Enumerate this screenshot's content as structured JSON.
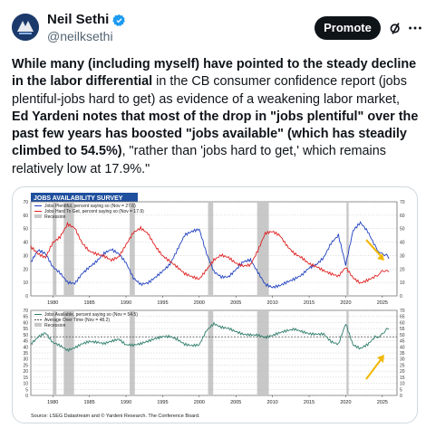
{
  "author": {
    "name": "Neil Sethi",
    "handle": "@neilksethi",
    "verified": true
  },
  "actions": {
    "promote_label": "Promote"
  },
  "tweet": {
    "segments": [
      {
        "bold": true,
        "text": "While many (including myself) have pointed to the steady decline in the labor differential"
      },
      {
        "bold": false,
        "text": " in the CB consumer confidence report (jobs plentiful-jobs hard to get) as evidence of a weakening labor market, "
      },
      {
        "bold": true,
        "text": "Ed Yardeni notes that most of the drop in \"jobs plentiful\" over the past few years has boosted \"jobs available\" (which has steadily climbed to 54.5%)"
      },
      {
        "bold": false,
        "text": ", \"rather than 'jobs hard to get,' which remains relatively low at 17.9%.\""
      }
    ]
  },
  "chart_data": [
    {
      "type": "line",
      "title": "JOBS AVAILABILITY SURVEY",
      "ylim": [
        0,
        70
      ],
      "yticks": [
        0,
        10,
        20,
        30,
        40,
        50,
        60,
        70
      ],
      "xticks": [
        "1980",
        "1985",
        "1990",
        "1995",
        "2000",
        "2005",
        "2010",
        "2015",
        "2020",
        "2025"
      ],
      "xrange": [
        1977,
        2027
      ],
      "grid": true,
      "legend_position": "top-left",
      "recessions": [
        [
          1980.0,
          1980.5
        ],
        [
          1981.5,
          1982.9
        ],
        [
          1990.5,
          1991.2
        ],
        [
          2001.2,
          2001.9
        ],
        [
          2007.9,
          2009.5
        ],
        [
          2020.1,
          2020.4
        ]
      ],
      "series": [
        {
          "name": "Jobs Plentiful, percent saying so (Nov = 27.6)",
          "color": "#1f3fbf",
          "x": [
            1977,
            1978,
            1979,
            1980,
            1981,
            1982,
            1983,
            1984,
            1985,
            1986,
            1987,
            1988,
            1989,
            1990,
            1991,
            1992,
            1993,
            1994,
            1995,
            1996,
            1997,
            1998,
            1999,
            2000,
            2001,
            2002,
            2003,
            2004,
            2005,
            2006,
            2007,
            2008,
            2009,
            2010,
            2011,
            2012,
            2013,
            2014,
            2015,
            2016,
            2017,
            2018,
            2019,
            2020,
            2021,
            2022,
            2023,
            2024,
            2025.9
          ],
          "values": [
            25,
            33,
            30,
            20,
            16,
            10,
            10,
            18,
            23,
            27,
            32,
            34,
            30,
            23,
            12,
            8,
            10,
            15,
            20,
            25,
            35,
            45,
            47,
            48,
            30,
            17,
            14,
            15,
            21,
            27,
            28,
            18,
            8,
            5,
            6,
            9,
            12,
            16,
            22,
            25,
            30,
            40,
            45,
            22,
            47,
            53,
            47,
            37,
            27.6
          ]
        },
        {
          "name": "Jobs Hard To Get, percent saying so (Nov = 17.9)",
          "color": "#e02020",
          "x": [
            1977,
            1978,
            1979,
            1980,
            1981,
            1982,
            1983,
            1984,
            1985,
            1986,
            1987,
            1988,
            1989,
            1990,
            1991,
            1992,
            1993,
            1994,
            1995,
            1996,
            1997,
            1998,
            1999,
            2000,
            2001,
            2002,
            2003,
            2004,
            2005,
            2006,
            2007,
            2008,
            2009,
            2010,
            2011,
            2012,
            2013,
            2014,
            2015,
            2016,
            2017,
            2018,
            2019,
            2020,
            2021,
            2022,
            2023,
            2024,
            2025.9
          ],
          "values": [
            35,
            30,
            28,
            40,
            45,
            55,
            52,
            40,
            33,
            30,
            28,
            25,
            28,
            38,
            48,
            52,
            48,
            38,
            30,
            25,
            20,
            15,
            13,
            12,
            20,
            28,
            32,
            30,
            25,
            22,
            22,
            32,
            45,
            47,
            45,
            38,
            33,
            30,
            25,
            22,
            18,
            15,
            13,
            20,
            13,
            10,
            13,
            16,
            17.9
          ]
        }
      ],
      "legend_extra": [
        "Recession"
      ]
    },
    {
      "type": "line",
      "ylim": [
        0,
        70
      ],
      "yticks": [
        0,
        5,
        10,
        15,
        20,
        25,
        30,
        35,
        40,
        45,
        50,
        55,
        60,
        65,
        70
      ],
      "xticks": [
        "1980",
        "1985",
        "1990",
        "1995",
        "2000",
        "2005",
        "2010",
        "2015",
        "2020",
        "2025"
      ],
      "xrange": [
        1977,
        2027
      ],
      "grid": true,
      "legend_position": "top-left",
      "recessions": [
        [
          1980.0,
          1980.5
        ],
        [
          1981.5,
          1982.9
        ],
        [
          1990.5,
          1991.2
        ],
        [
          2001.2,
          2001.9
        ],
        [
          2007.9,
          2009.5
        ],
        [
          2020.1,
          2020.4
        ]
      ],
      "average": 48.2,
      "series": [
        {
          "name": "Jobs Available, percent saying so (Nov = 54.5)",
          "color": "#2e7d6b",
          "x": [
            1977,
            1978,
            1979,
            1980,
            1981,
            1982,
            1983,
            1984,
            1985,
            1986,
            1987,
            1988,
            1989,
            1990,
            1991,
            1992,
            1993,
            1994,
            1995,
            1996,
            1997,
            1998,
            1999,
            2000,
            2001,
            2002,
            2003,
            2004,
            2005,
            2006,
            2007,
            2008,
            2009,
            2010,
            2011,
            2012,
            2013,
            2014,
            2015,
            2016,
            2017,
            2018,
            2019,
            2020,
            2021,
            2022,
            2023,
            2024,
            2025.9
          ],
          "values": [
            42,
            47,
            50,
            42,
            40,
            37,
            40,
            44,
            46,
            45,
            43,
            44,
            45,
            40,
            40,
            42,
            45,
            48,
            50,
            50,
            47,
            42,
            40,
            40,
            52,
            58,
            56,
            56,
            54,
            52,
            51,
            50,
            47,
            48,
            50,
            52,
            54,
            53,
            52,
            52,
            52,
            45,
            42,
            58,
            40,
            37,
            41,
            48,
            54.5
          ]
        },
        {
          "name": "Average Over Time (Nov = 48.2)",
          "color": "#555555",
          "dashed": true
        }
      ],
      "legend_extra": [
        "Recession"
      ]
    }
  ],
  "chart_source": "Source: LSEG Datastream and © Yardeni Research. The Conference Board."
}
